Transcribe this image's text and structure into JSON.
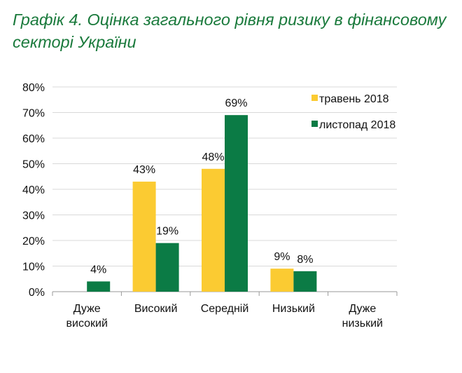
{
  "chart_data": {
    "type": "bar",
    "title": "Графік 4. Оцінка загального рівня ризику в фінансовому секторі України",
    "categories": [
      [
        "Дуже",
        "високий"
      ],
      [
        "Високий"
      ],
      [
        "Середній"
      ],
      [
        "Низький"
      ],
      [
        "Дуже",
        "низький"
      ]
    ],
    "series": [
      {
        "name": "травень 2018",
        "color": "#FBCB32",
        "values": [
          null,
          43,
          48,
          9,
          null
        ],
        "labels": [
          "",
          "43%",
          "48%",
          "9%",
          ""
        ]
      },
      {
        "name": "листопад 2018",
        "color": "#0B7B45",
        "values": [
          4,
          19,
          69,
          8,
          null
        ],
        "labels": [
          "4%",
          "19%",
          "69%",
          "8%",
          ""
        ]
      }
    ],
    "ylim": [
      0,
      80
    ],
    "yticks": [
      "0%",
      "10%",
      "20%",
      "30%",
      "40%",
      "50%",
      "60%",
      "70%",
      "80%"
    ],
    "grid": true,
    "legend": "top-right",
    "xlabel": "",
    "ylabel": ""
  }
}
